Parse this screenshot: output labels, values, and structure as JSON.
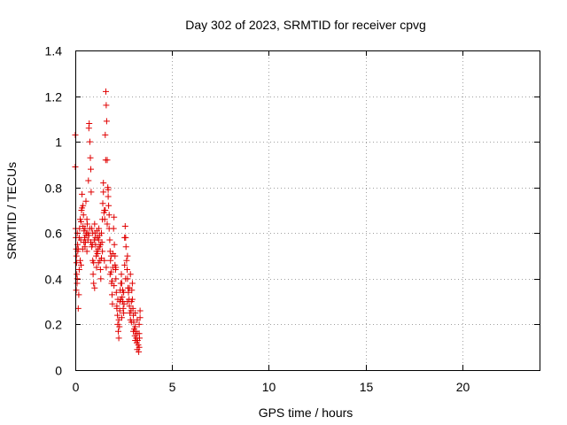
{
  "chart_data": {
    "type": "scatter",
    "title": "Day 302 of 2023, SRMTID for receiver cpvg",
    "xlabel": "GPS time / hours",
    "ylabel": "SRMTID / TECUs",
    "xlim": [
      0,
      24
    ],
    "ylim": [
      0,
      1.4
    ],
    "xticks": [
      0,
      5,
      10,
      15,
      20
    ],
    "xtick_labels": [
      "0",
      "5",
      "10",
      "15",
      "20"
    ],
    "yticks": [
      0,
      0.2,
      0.4,
      0.6,
      0.8,
      1.0,
      1.2,
      1.4
    ],
    "ytick_labels": [
      "0",
      "0.2",
      "0.4",
      "0.6",
      "0.8",
      "1",
      "1.2",
      "1.4"
    ],
    "grid": true,
    "marker": "+",
    "marker_color": "#e00000",
    "series": [
      {
        "name": "SRMTID",
        "points": [
          [
            0.0,
            1.03
          ],
          [
            0.0,
            0.89
          ],
          [
            0.02,
            0.62
          ],
          [
            0.03,
            0.58
          ],
          [
            0.05,
            0.53
          ],
          [
            0.06,
            0.5
          ],
          [
            0.07,
            0.47
          ],
          [
            0.08,
            0.42
          ],
          [
            0.09,
            0.38
          ],
          [
            0.1,
            0.6
          ],
          [
            0.12,
            0.55
          ],
          [
            0.13,
            0.52
          ],
          [
            0.15,
            0.27
          ],
          [
            0.18,
            0.33
          ],
          [
            0.2,
            0.44
          ],
          [
            0.22,
            0.62
          ],
          [
            0.25,
            0.48
          ],
          [
            0.28,
            0.57
          ],
          [
            0.3,
            0.65
          ],
          [
            0.32,
            0.7
          ],
          [
            0.35,
            0.77
          ],
          [
            0.38,
            0.53
          ],
          [
            0.4,
            0.72
          ],
          [
            0.42,
            0.68
          ],
          [
            0.45,
            0.61
          ],
          [
            0.48,
            0.58
          ],
          [
            0.5,
            0.62
          ],
          [
            0.52,
            0.56
          ],
          [
            0.55,
            0.74
          ],
          [
            0.58,
            0.6
          ],
          [
            0.6,
            0.52
          ],
          [
            0.62,
            0.64
          ],
          [
            0.65,
            0.57
          ],
          [
            0.68,
            0.83
          ],
          [
            0.7,
            1.06
          ],
          [
            0.72,
            1.08
          ],
          [
            0.75,
            1.0
          ],
          [
            0.78,
            0.93
          ],
          [
            0.8,
            0.88
          ],
          [
            0.82,
            0.78
          ],
          [
            0.85,
            0.62
          ],
          [
            0.88,
            0.55
          ],
          [
            0.9,
            0.48
          ],
          [
            0.92,
            0.42
          ],
          [
            0.95,
            0.38
          ],
          [
            0.98,
            0.57
          ],
          [
            1.0,
            0.64
          ],
          [
            1.02,
            0.6
          ],
          [
            1.05,
            0.55
          ],
          [
            1.08,
            0.5
          ],
          [
            1.1,
            0.45
          ],
          [
            1.12,
            0.61
          ],
          [
            1.15,
            0.58
          ],
          [
            1.18,
            0.53
          ],
          [
            1.2,
            0.57
          ],
          [
            1.22,
            0.62
          ],
          [
            1.25,
            0.54
          ],
          [
            1.28,
            0.48
          ],
          [
            1.3,
            0.44
          ],
          [
            1.32,
            0.4
          ],
          [
            1.35,
            0.6
          ],
          [
            1.38,
            0.56
          ],
          [
            1.4,
            0.66
          ],
          [
            1.42,
            0.73
          ],
          [
            1.45,
            0.82
          ],
          [
            1.48,
            0.69
          ],
          [
            1.5,
            0.7
          ],
          [
            1.52,
            0.66
          ],
          [
            1.55,
            1.03
          ],
          [
            1.57,
            0.92
          ],
          [
            1.58,
            1.22
          ],
          [
            1.6,
            1.16
          ],
          [
            1.62,
            1.09
          ],
          [
            1.65,
            0.92
          ],
          [
            1.68,
            0.8
          ],
          [
            1.7,
            0.76
          ],
          [
            1.72,
            0.72
          ],
          [
            1.75,
            0.68
          ],
          [
            1.78,
            0.57
          ],
          [
            1.8,
            0.52
          ],
          [
            1.82,
            0.48
          ],
          [
            1.85,
            0.43
          ],
          [
            1.88,
            0.38
          ],
          [
            1.9,
            0.33
          ],
          [
            1.92,
            0.29
          ],
          [
            1.95,
            0.51
          ],
          [
            1.98,
            0.62
          ],
          [
            2.0,
            0.67
          ],
          [
            2.02,
            0.55
          ],
          [
            2.05,
            0.46
          ],
          [
            2.08,
            0.44
          ],
          [
            2.1,
            0.4
          ],
          [
            2.12,
            0.34
          ],
          [
            2.15,
            0.28
          ],
          [
            2.18,
            0.24
          ],
          [
            2.2,
            0.2
          ],
          [
            2.22,
            0.17
          ],
          [
            2.25,
            0.14
          ],
          [
            2.28,
            0.19
          ],
          [
            2.3,
            0.3
          ],
          [
            2.32,
            0.35
          ],
          [
            2.35,
            0.38
          ],
          [
            2.38,
            0.42
          ],
          [
            2.4,
            0.38
          ],
          [
            2.42,
            0.32
          ],
          [
            2.45,
            0.3
          ],
          [
            2.48,
            0.27
          ],
          [
            2.5,
            0.25
          ],
          [
            2.52,
            0.29
          ],
          [
            2.55,
            0.46
          ],
          [
            2.58,
            0.63
          ],
          [
            2.6,
            0.58
          ],
          [
            2.62,
            0.54
          ],
          [
            2.65,
            0.48
          ],
          [
            2.68,
            0.44
          ],
          [
            2.7,
            0.4
          ],
          [
            2.72,
            0.36
          ],
          [
            2.75,
            0.34
          ],
          [
            2.78,
            0.31
          ],
          [
            2.8,
            0.28
          ],
          [
            2.82,
            0.25
          ],
          [
            2.85,
            0.22
          ],
          [
            2.88,
            0.26
          ],
          [
            2.9,
            0.3
          ],
          [
            2.92,
            0.35
          ],
          [
            2.95,
            0.31
          ],
          [
            2.98,
            0.27
          ],
          [
            3.0,
            0.24
          ],
          [
            3.02,
            0.21
          ],
          [
            3.05,
            0.18
          ],
          [
            3.08,
            0.15
          ],
          [
            3.1,
            0.19
          ],
          [
            3.12,
            0.17
          ],
          [
            3.15,
            0.14
          ],
          [
            3.18,
            0.12
          ],
          [
            3.2,
            0.16
          ],
          [
            3.22,
            0.13
          ],
          [
            3.25,
            0.11
          ],
          [
            3.28,
            0.08
          ],
          [
            3.3,
            0.1
          ],
          [
            3.32,
            0.14
          ],
          [
            3.35,
            0.26
          ],
          [
            3.35,
            0.23
          ],
          [
            3.3,
            0.2
          ],
          [
            3.2,
            0.22
          ],
          [
            3.1,
            0.25
          ],
          [
            2.95,
            0.38
          ],
          [
            2.85,
            0.42
          ],
          [
            2.7,
            0.5
          ],
          [
            2.55,
            0.58
          ],
          [
            2.45,
            0.35
          ],
          [
            2.35,
            0.31
          ],
          [
            2.25,
            0.22
          ],
          [
            2.15,
            0.27
          ],
          [
            2.05,
            0.5
          ],
          [
            1.95,
            0.45
          ],
          [
            1.85,
            0.5
          ],
          [
            1.75,
            0.62
          ],
          [
            1.65,
            0.64
          ],
          [
            1.55,
            0.7
          ],
          [
            1.45,
            0.78
          ],
          [
            1.35,
            0.49
          ],
          [
            1.25,
            0.59
          ],
          [
            1.15,
            0.51
          ],
          [
            1.05,
            0.58
          ],
          [
            0.95,
            0.47
          ],
          [
            0.85,
            0.54
          ],
          [
            0.75,
            0.62
          ],
          [
            0.65,
            0.6
          ],
          [
            0.55,
            0.59
          ],
          [
            0.45,
            0.56
          ],
          [
            0.35,
            0.71
          ],
          [
            0.25,
            0.66
          ],
          [
            0.15,
            0.53
          ],
          [
            0.05,
            0.35
          ],
          [
            0.1,
            0.4
          ],
          [
            0.2,
            0.58
          ],
          [
            0.3,
            0.46
          ],
          [
            0.4,
            0.63
          ],
          [
            0.5,
            0.54
          ],
          [
            0.6,
            0.66
          ],
          [
            0.7,
            0.59
          ],
          [
            0.8,
            0.56
          ],
          [
            0.9,
            0.6
          ],
          [
            1.0,
            0.36
          ],
          [
            1.1,
            0.52
          ],
          [
            1.2,
            0.47
          ],
          [
            1.3,
            0.55
          ],
          [
            1.4,
            0.52
          ],
          [
            1.5,
            0.48
          ],
          [
            1.6,
            0.45
          ],
          [
            1.7,
            0.79
          ],
          [
            1.8,
            0.42
          ],
          [
            1.9,
            0.39
          ],
          [
            2.0,
            0.37
          ],
          [
            2.1,
            0.45
          ],
          [
            2.2,
            0.31
          ],
          [
            2.3,
            0.26
          ],
          [
            2.4,
            0.23
          ],
          [
            2.5,
            0.34
          ],
          [
            2.6,
            0.4
          ],
          [
            2.7,
            0.3
          ],
          [
            2.8,
            0.36
          ],
          [
            2.9,
            0.21
          ],
          [
            3.0,
            0.17
          ],
          [
            3.1,
            0.13
          ],
          [
            3.2,
            0.09
          ],
          [
            3.3,
            0.16
          ]
        ]
      }
    ]
  }
}
